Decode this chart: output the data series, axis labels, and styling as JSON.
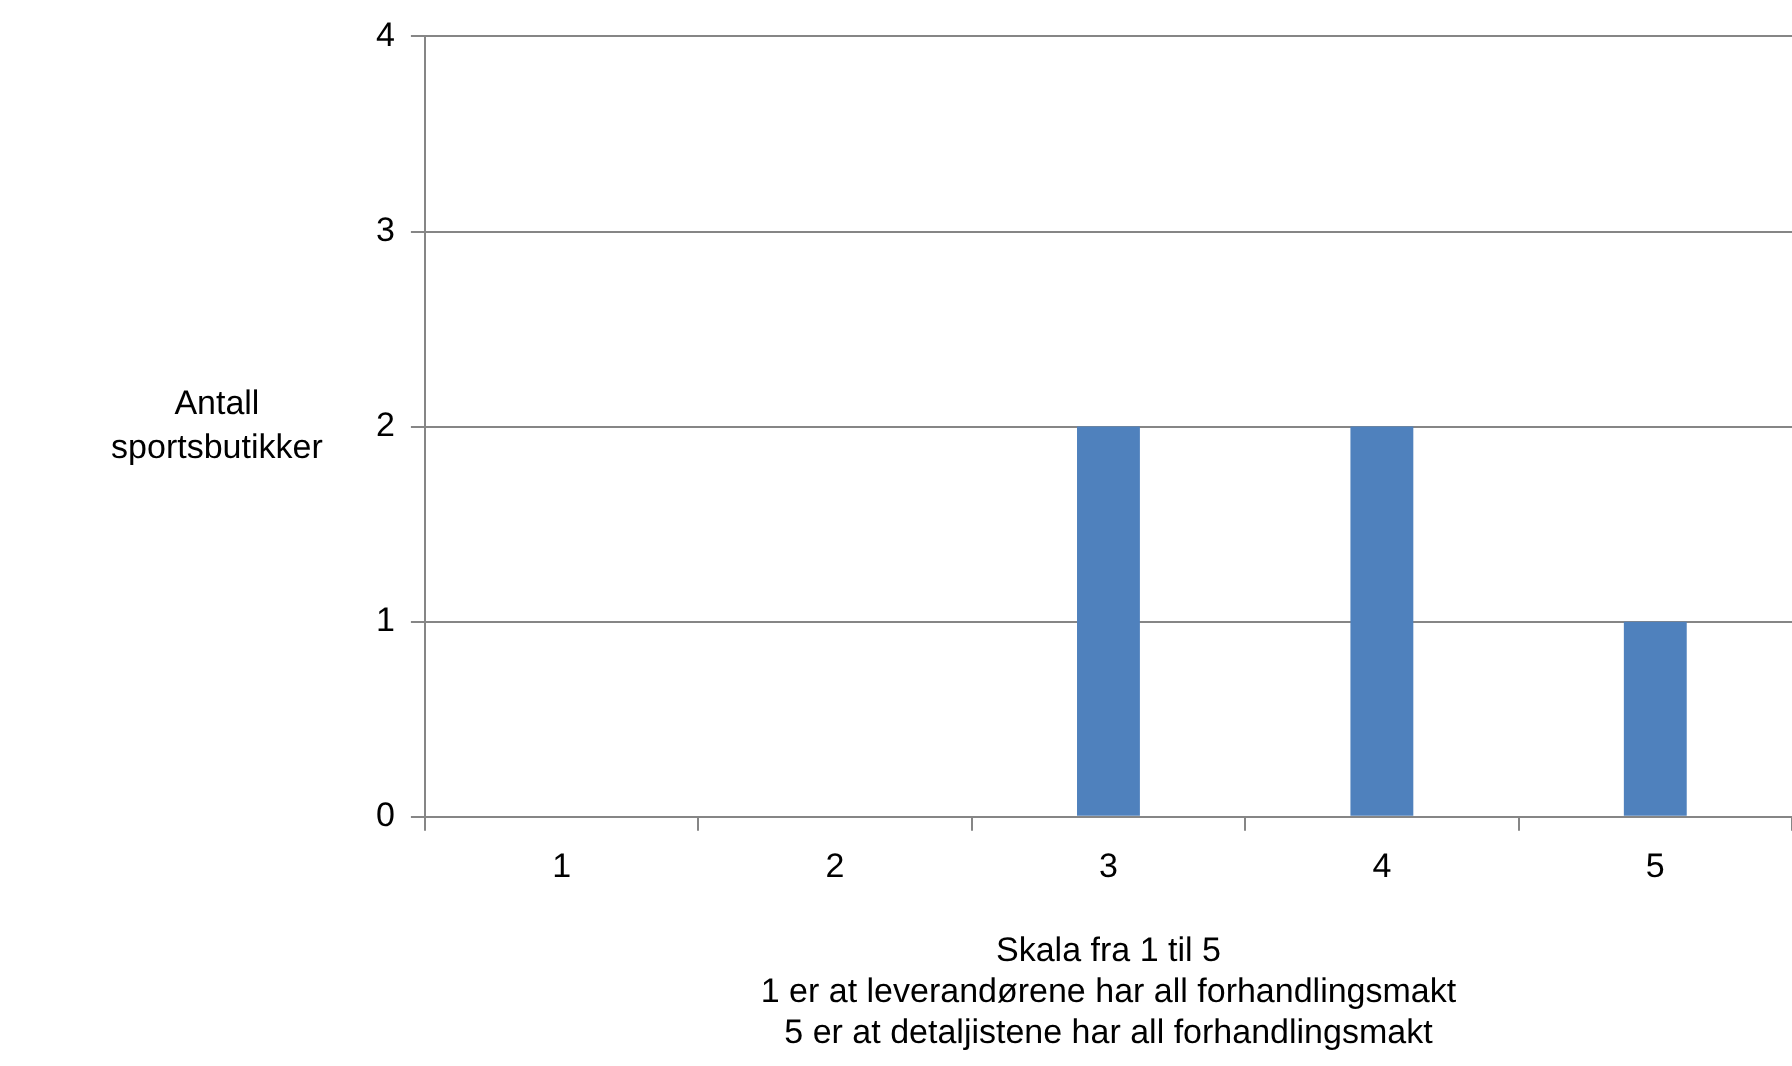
{
  "chart_data": {
    "type": "bar",
    "categories": [
      "1",
      "2",
      "3",
      "4",
      "5"
    ],
    "values": [
      0,
      0,
      2,
      2,
      1
    ],
    "color": "#4f81bd",
    "ylim": [
      0,
      4
    ],
    "yticks": [
      0,
      1,
      2,
      3,
      4
    ],
    "ylabel": "Antall\nsportsbutikker",
    "xlabel": "Skala fra 1 til 5\n1 er at leverandørene har all forhandlingsmakt\n5 er at detaljistene har all forhandlingsmakt",
    "grid": "y"
  }
}
